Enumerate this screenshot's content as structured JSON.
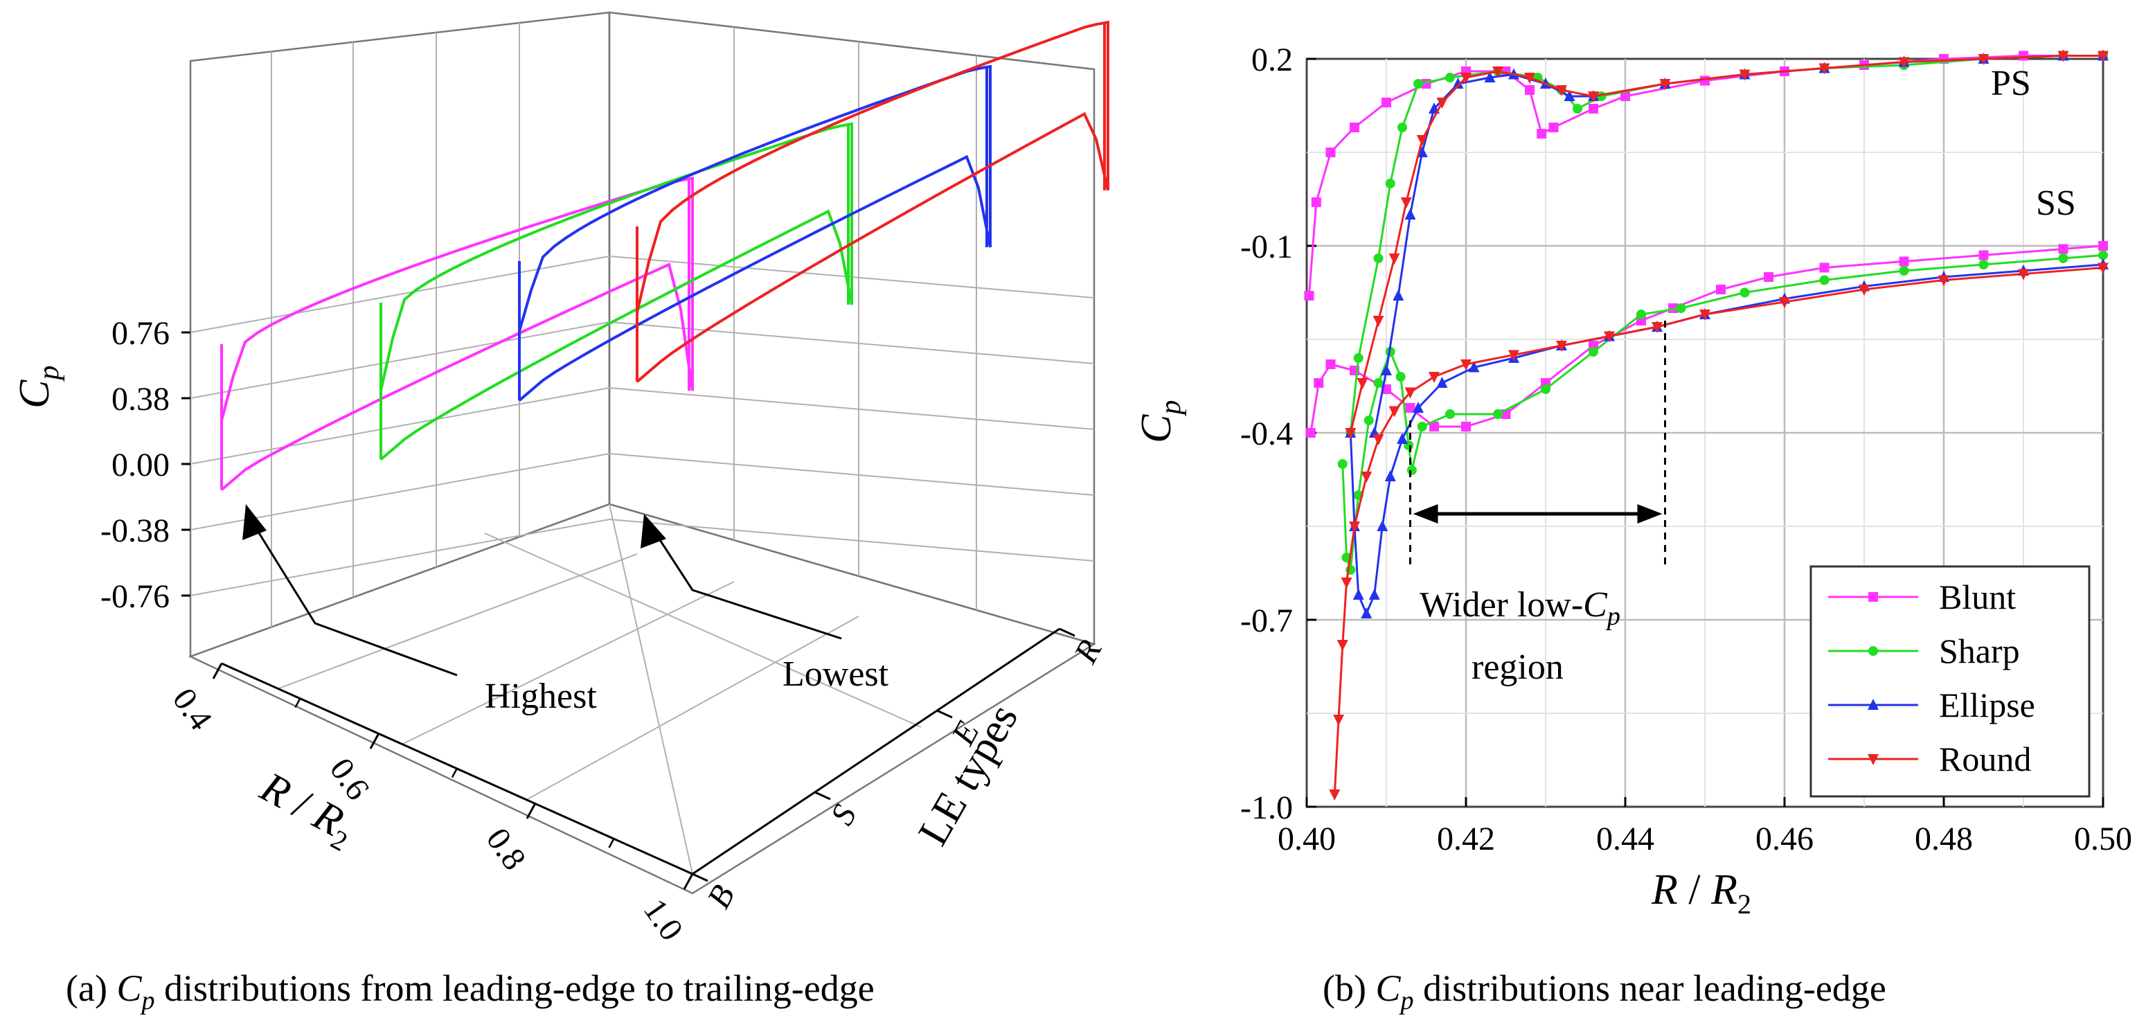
{
  "captions": {
    "a_prefix": "(a) ",
    "a_sym": "C",
    "a_sub": "p",
    "a_rest": " distributions from leading-edge to trailing-edge",
    "b_prefix": "(b) ",
    "b_sym": "C",
    "b_sub": "p",
    "b_rest": " distributions near leading-edge"
  },
  "colors": {
    "Blunt": "#ff33ff",
    "Sharp": "#22dd22",
    "Ellipse": "#2233ee",
    "Round": "#ee2222"
  },
  "chart_data": [
    {
      "type": "line",
      "title": "",
      "zlabel_sym": "C",
      "zlabel_sub": "p",
      "xlabel_sym": "R",
      "xlabel_sep": " / ",
      "xlabel_sym2": "R",
      "xlabel_sub": "2",
      "ylabel": "LE types",
      "z_ticks": [
        "0.76",
        "0.38",
        "0.00",
        "-0.38",
        "-0.76"
      ],
      "z_tick_values": [
        0.76,
        0.38,
        0.0,
        -0.38,
        -0.76
      ],
      "x_ticks": [
        "0.4",
        "0.6",
        "0.8",
        "1.0"
      ],
      "y_ticks": [
        "B",
        "S",
        "E",
        "R"
      ],
      "annotations": [
        "Highest",
        "Lowest"
      ],
      "series": [
        {
          "name": "Blunt",
          "le_min": -0.38,
          "te_min": -0.28,
          "ps_max": 0.62,
          "ss_max": 0.58
        },
        {
          "name": "Sharp",
          "le_min": -0.45,
          "te_min": 0.0,
          "ps_max": 0.7,
          "ss_max": 0.66
        },
        {
          "name": "Ellipse",
          "le_min": -0.34,
          "te_min": 0.1,
          "ps_max": 0.8,
          "ss_max": 0.74
        },
        {
          "name": "Round",
          "le_min": -0.44,
          "te_min": 0.24,
          "ps_max": 0.86,
          "ss_max": 0.8
        }
      ]
    },
    {
      "type": "line",
      "title": "",
      "xlabel_sym": "R",
      "xlabel_sep": " / ",
      "xlabel_sym2": "R",
      "xlabel_sub": "2",
      "ylabel_sym": "C",
      "ylabel_sub": "p",
      "xlim": [
        0.4,
        0.5
      ],
      "ylim": [
        -1.0,
        0.2
      ],
      "x_ticks": [
        "0.40",
        "0.42",
        "0.44",
        "0.46",
        "0.48",
        "0.50"
      ],
      "x_tick_values": [
        0.4,
        0.42,
        0.44,
        0.46,
        0.48,
        0.5
      ],
      "y_ticks": [
        "0.2",
        "-0.1",
        "-0.4",
        "-0.7",
        "-1.0"
      ],
      "y_tick_values": [
        0.2,
        -0.1,
        -0.4,
        -0.7,
        -1.0
      ],
      "labels": {
        "ps": "PS",
        "ss": "SS",
        "wider_1": "Wider low-",
        "wider_sym": "C",
        "wider_sub": "p",
        "wider_2": "region"
      },
      "region": [
        0.413,
        0.445
      ],
      "legend_position": "bottom-right",
      "series": [
        {
          "name": "Blunt",
          "marker": "square",
          "ps": [
            [
              0.4003,
              -0.18
            ],
            [
              0.4012,
              -0.03
            ],
            [
              0.403,
              0.05
            ],
            [
              0.406,
              0.09
            ],
            [
              0.41,
              0.13
            ],
            [
              0.415,
              0.16
            ],
            [
              0.42,
              0.18
            ],
            [
              0.425,
              0.18
            ],
            [
              0.428,
              0.15
            ],
            [
              0.4295,
              0.08
            ],
            [
              0.431,
              0.09
            ],
            [
              0.436,
              0.12
            ],
            [
              0.44,
              0.14
            ],
            [
              0.45,
              0.165
            ],
            [
              0.46,
              0.18
            ],
            [
              0.47,
              0.19
            ],
            [
              0.48,
              0.2
            ],
            [
              0.49,
              0.21
            ],
            [
              0.5,
              0.22
            ]
          ],
          "ss": [
            [
              0.4005,
              -0.4
            ],
            [
              0.4015,
              -0.32
            ],
            [
              0.403,
              -0.29
            ],
            [
              0.406,
              -0.3
            ],
            [
              0.41,
              -0.33
            ],
            [
              0.413,
              -0.36
            ],
            [
              0.416,
              -0.39
            ],
            [
              0.42,
              -0.39
            ],
            [
              0.425,
              -0.37
            ],
            [
              0.43,
              -0.32
            ],
            [
              0.436,
              -0.26
            ],
            [
              0.442,
              -0.22
            ],
            [
              0.446,
              -0.2
            ],
            [
              0.452,
              -0.17
            ],
            [
              0.458,
              -0.15
            ],
            [
              0.465,
              -0.135
            ],
            [
              0.475,
              -0.125
            ],
            [
              0.485,
              -0.115
            ],
            [
              0.495,
              -0.105
            ],
            [
              0.5,
              -0.1
            ]
          ]
        },
        {
          "name": "Sharp",
          "marker": "circle",
          "ps": [
            [
              0.4055,
              -0.4
            ],
            [
              0.4065,
              -0.28
            ],
            [
              0.409,
              -0.12
            ],
            [
              0.4105,
              0.0
            ],
            [
              0.412,
              0.09
            ],
            [
              0.414,
              0.16
            ],
            [
              0.418,
              0.17
            ],
            [
              0.424,
              0.18
            ],
            [
              0.429,
              0.17
            ],
            [
              0.432,
              0.15
            ],
            [
              0.434,
              0.12
            ],
            [
              0.437,
              0.14
            ],
            [
              0.445,
              0.16
            ],
            [
              0.455,
              0.175
            ],
            [
              0.465,
              0.185
            ],
            [
              0.475,
              0.19
            ],
            [
              0.485,
              0.2
            ],
            [
              0.495,
              0.21
            ],
            [
              0.5,
              0.22
            ]
          ],
          "ss": [
            [
              0.4045,
              -0.45
            ],
            [
              0.405,
              -0.6
            ],
            [
              0.4055,
              -0.62
            ],
            [
              0.4065,
              -0.5
            ],
            [
              0.4078,
              -0.38
            ],
            [
              0.409,
              -0.32
            ],
            [
              0.4105,
              -0.27
            ],
            [
              0.4118,
              -0.31
            ],
            [
              0.4128,
              -0.42
            ],
            [
              0.4132,
              -0.46
            ],
            [
              0.4145,
              -0.39
            ],
            [
              0.418,
              -0.37
            ],
            [
              0.424,
              -0.37
            ],
            [
              0.43,
              -0.33
            ],
            [
              0.436,
              -0.27
            ],
            [
              0.442,
              -0.21
            ],
            [
              0.447,
              -0.2
            ],
            [
              0.455,
              -0.175
            ],
            [
              0.465,
              -0.155
            ],
            [
              0.475,
              -0.14
            ],
            [
              0.485,
              -0.13
            ],
            [
              0.495,
              -0.12
            ],
            [
              0.5,
              -0.115
            ]
          ]
        },
        {
          "name": "Ellipse",
          "marker": "triangle-up",
          "ps": [
            [
              0.4085,
              -0.4
            ],
            [
              0.41,
              -0.3
            ],
            [
              0.4115,
              -0.18
            ],
            [
              0.413,
              -0.05
            ],
            [
              0.4145,
              0.05
            ],
            [
              0.416,
              0.12
            ],
            [
              0.419,
              0.16
            ],
            [
              0.423,
              0.17
            ],
            [
              0.426,
              0.175
            ],
            [
              0.43,
              0.16
            ],
            [
              0.433,
              0.14
            ],
            [
              0.436,
              0.14
            ],
            [
              0.445,
              0.16
            ],
            [
              0.455,
              0.175
            ],
            [
              0.465,
              0.185
            ],
            [
              0.475,
              0.195
            ],
            [
              0.485,
              0.2
            ],
            [
              0.495,
              0.21
            ],
            [
              0.5,
              0.22
            ]
          ],
          "ss": [
            [
              0.4055,
              -0.4
            ],
            [
              0.406,
              -0.55
            ],
            [
              0.4065,
              -0.66
            ],
            [
              0.4075,
              -0.69
            ],
            [
              0.4085,
              -0.66
            ],
            [
              0.4095,
              -0.55
            ],
            [
              0.4105,
              -0.47
            ],
            [
              0.412,
              -0.41
            ],
            [
              0.414,
              -0.36
            ],
            [
              0.417,
              -0.32
            ],
            [
              0.421,
              -0.295
            ],
            [
              0.426,
              -0.28
            ],
            [
              0.432,
              -0.26
            ],
            [
              0.438,
              -0.245
            ],
            [
              0.444,
              -0.23
            ],
            [
              0.45,
              -0.21
            ],
            [
              0.46,
              -0.185
            ],
            [
              0.47,
              -0.165
            ],
            [
              0.48,
              -0.15
            ],
            [
              0.49,
              -0.14
            ],
            [
              0.5,
              -0.13
            ]
          ]
        },
        {
          "name": "Round",
          "marker": "triangle-down",
          "ps": [
            [
              0.4055,
              -0.4
            ],
            [
              0.407,
              -0.32
            ],
            [
              0.409,
              -0.22
            ],
            [
              0.411,
              -0.12
            ],
            [
              0.4125,
              -0.03
            ],
            [
              0.4145,
              0.07
            ],
            [
              0.417,
              0.13
            ],
            [
              0.42,
              0.17
            ],
            [
              0.424,
              0.18
            ],
            [
              0.428,
              0.17
            ],
            [
              0.432,
              0.15
            ],
            [
              0.436,
              0.14
            ],
            [
              0.445,
              0.16
            ],
            [
              0.455,
              0.175
            ],
            [
              0.465,
              0.185
            ],
            [
              0.475,
              0.195
            ],
            [
              0.485,
              0.2
            ],
            [
              0.495,
              0.21
            ],
            [
              0.5,
              0.22
            ]
          ],
          "ss": [
            [
              0.4035,
              -0.98
            ],
            [
              0.404,
              -0.86
            ],
            [
              0.4045,
              -0.74
            ],
            [
              0.405,
              -0.64
            ],
            [
              0.406,
              -0.55
            ],
            [
              0.4075,
              -0.47
            ],
            [
              0.409,
              -0.41
            ],
            [
              0.411,
              -0.365
            ],
            [
              0.413,
              -0.335
            ],
            [
              0.416,
              -0.31
            ],
            [
              0.42,
              -0.29
            ],
            [
              0.426,
              -0.275
            ],
            [
              0.432,
              -0.26
            ],
            [
              0.438,
              -0.245
            ],
            [
              0.444,
              -0.23
            ],
            [
              0.45,
              -0.21
            ],
            [
              0.46,
              -0.19
            ],
            [
              0.47,
              -0.17
            ],
            [
              0.48,
              -0.155
            ],
            [
              0.49,
              -0.145
            ],
            [
              0.5,
              -0.135
            ]
          ]
        }
      ]
    }
  ]
}
